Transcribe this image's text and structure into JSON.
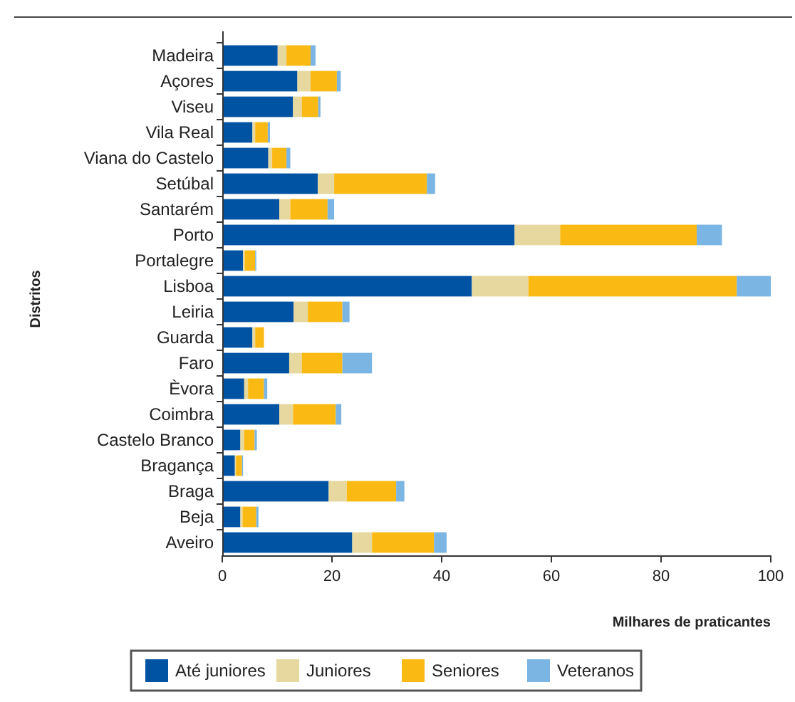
{
  "chart_data": {
    "type": "bar",
    "orientation": "horizontal",
    "stacked": true,
    "ylabel": "Distritos",
    "xlabel": "Milhares de praticantes",
    "categories": [
      "Madeira",
      "Açores",
      "Viseu",
      "Vila Real",
      "Viana do Castelo",
      "Setúbal",
      "Santarém",
      "Porto",
      "Portalegre",
      "Lisboa",
      "Leiria",
      "Guarda",
      "Faro",
      "Èvora",
      "Coimbra",
      "Castelo Branco",
      "Bragança",
      "Braga",
      "Beja",
      "Aveiro"
    ],
    "series": [
      {
        "name": "Até juniores",
        "color": "#0052a3",
        "values": [
          10.1,
          13.7,
          12.9,
          5.5,
          8.4,
          17.4,
          10.4,
          53.3,
          3.8,
          45.5,
          13.0,
          5.5,
          12.2,
          4.0,
          10.4,
          3.3,
          2.3,
          19.4,
          3.3,
          23.7
        ]
      },
      {
        "name": "Juniores",
        "color": "#e6d89e",
        "values": [
          1.6,
          2.4,
          1.6,
          0.5,
          0.7,
          3.0,
          2.0,
          8.3,
          0.3,
          10.3,
          2.6,
          0.5,
          2.3,
          0.7,
          2.5,
          0.7,
          0.2,
          3.3,
          0.4,
          3.6
        ]
      },
      {
        "name": "Seniores",
        "color": "#fbb914",
        "values": [
          4.4,
          4.8,
          3.0,
          2.3,
          2.6,
          16.9,
          6.8,
          24.9,
          1.9,
          38.0,
          6.3,
          1.6,
          7.4,
          2.9,
          7.8,
          1.9,
          1.1,
          9.0,
          2.5,
          11.3
        ]
      },
      {
        "name": "Veteranos",
        "color": "#7ab5e3",
        "values": [
          0.9,
          0.7,
          0.4,
          0.4,
          0.7,
          1.5,
          1.2,
          4.6,
          0.2,
          6.2,
          1.3,
          null,
          5.4,
          0.6,
          1.0,
          0.4,
          0.2,
          1.5,
          0.4,
          2.3
        ]
      }
    ],
    "xlim": [
      0,
      100
    ],
    "xticks": [
      0,
      20,
      40,
      60,
      80,
      100
    ],
    "grid": false,
    "legend": "bottom"
  }
}
